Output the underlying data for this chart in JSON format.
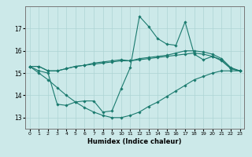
{
  "xlabel": "Humidex (Indice chaleur)",
  "background_color": "#cce9e9",
  "grid_color": "#add4d4",
  "line_color": "#1a7a6e",
  "xlim": [
    -0.5,
    23.5
  ],
  "ylim": [
    12.5,
    18.0
  ],
  "yticks": [
    13,
    14,
    15,
    16,
    17
  ],
  "xticks": [
    0,
    1,
    2,
    3,
    4,
    5,
    6,
    7,
    8,
    9,
    10,
    11,
    12,
    13,
    14,
    15,
    16,
    17,
    18,
    19,
    20,
    21,
    22,
    23
  ],
  "lines": [
    {
      "x": [
        0,
        1,
        2,
        3,
        4,
        5,
        6,
        7,
        8,
        9,
        10,
        11,
        12,
        13,
        14,
        15,
        16,
        17,
        18,
        19,
        20,
        21,
        22,
        23
      ],
      "y": [
        15.3,
        15.3,
        15.1,
        15.1,
        15.2,
        15.3,
        15.35,
        15.4,
        15.45,
        15.5,
        15.55,
        15.55,
        15.6,
        15.65,
        15.7,
        15.75,
        15.8,
        15.85,
        15.9,
        15.85,
        15.75,
        15.6,
        15.2,
        15.1
      ]
    },
    {
      "x": [
        0,
        1,
        2,
        3,
        4,
        5,
        6,
        7,
        8,
        9,
        10,
        11,
        12,
        13,
        14,
        15,
        16,
        17,
        18,
        19,
        20,
        21,
        22,
        23
      ],
      "y": [
        15.3,
        15.3,
        15.1,
        15.1,
        15.2,
        15.3,
        15.35,
        15.45,
        15.5,
        15.55,
        15.6,
        15.55,
        15.65,
        15.7,
        15.75,
        15.8,
        15.9,
        16.0,
        16.0,
        15.95,
        15.85,
        15.65,
        15.25,
        15.1
      ]
    },
    {
      "x": [
        0,
        1,
        2,
        3,
        4,
        5,
        6,
        7,
        8,
        9,
        10,
        11,
        12,
        13,
        14,
        15,
        16,
        17,
        18,
        19,
        20,
        21,
        22,
        23
      ],
      "y": [
        15.3,
        15.1,
        15.0,
        13.6,
        13.55,
        13.7,
        13.75,
        13.75,
        13.25,
        13.3,
        14.3,
        15.25,
        17.55,
        17.1,
        16.55,
        16.3,
        16.25,
        17.3,
        15.85,
        15.6,
        15.75,
        15.55,
        15.2,
        15.1
      ]
    },
    {
      "x": [
        0,
        1,
        2,
        3,
        4,
        5,
        6,
        7,
        8,
        9,
        10,
        11,
        12,
        13,
        14,
        15,
        16,
        17,
        18,
        19,
        20,
        21,
        22,
        23
      ],
      "y": [
        15.3,
        15.0,
        14.7,
        14.35,
        14.0,
        13.7,
        13.45,
        13.25,
        13.1,
        13.0,
        13.0,
        13.1,
        13.25,
        13.5,
        13.7,
        13.95,
        14.2,
        14.45,
        14.7,
        14.85,
        15.0,
        15.1,
        15.1,
        15.1
      ]
    }
  ]
}
